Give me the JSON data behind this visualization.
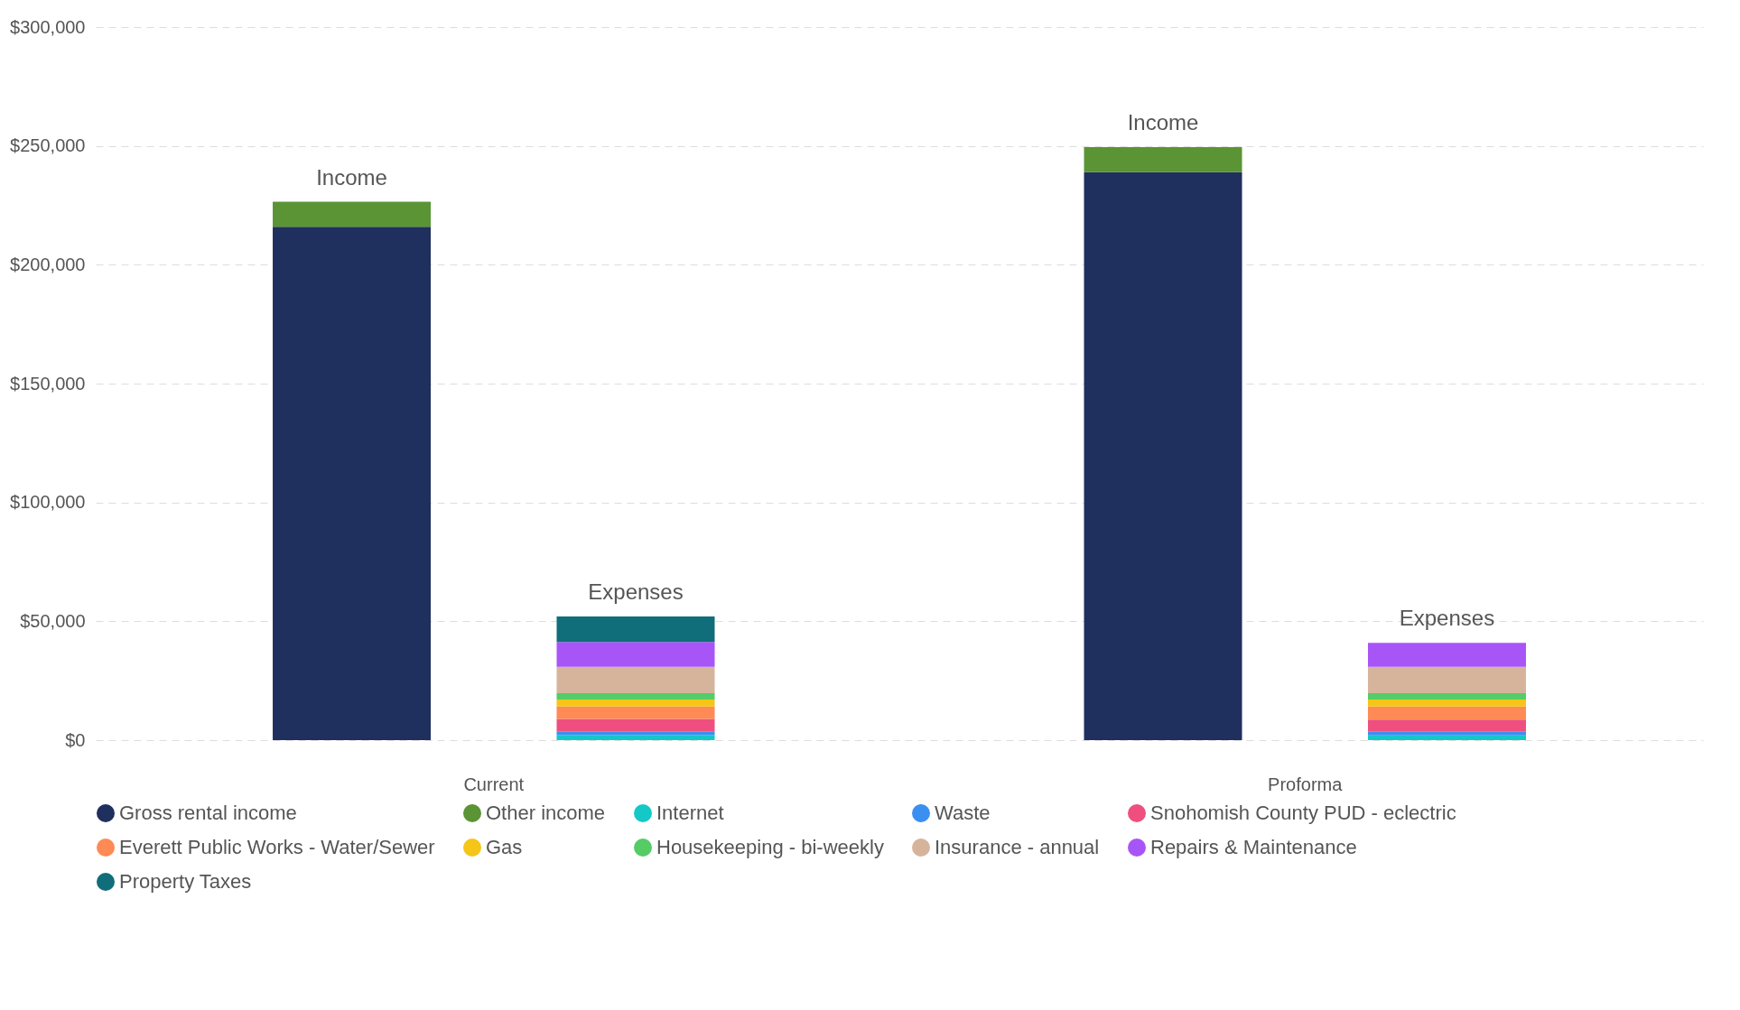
{
  "chart_data": {
    "type": "bar",
    "stacked": true,
    "categories": [
      null,
      null,
      null,
      null
    ],
    "ylim": [
      0,
      300000
    ],
    "yticks": [
      {
        "value": 0,
        "label": "$0"
      },
      {
        "value": 50000,
        "label": "$50,000"
      },
      {
        "value": 100000,
        "label": "$100,000"
      },
      {
        "value": 150000,
        "label": "$150,000"
      },
      {
        "value": 200000,
        "label": "$200,000"
      },
      {
        "value": 250000,
        "label": "$250,000"
      },
      {
        "value": 300000,
        "label": "$300,000"
      }
    ],
    "grid": "y",
    "legend": "bottom",
    "marker": "circle",
    "annotations": [
      {
        "text": "Income",
        "y": 226500
      },
      {
        "text": "Expenses",
        "y": 52000
      },
      {
        "text": "Income",
        "y": 249500
      },
      {
        "text": "Expenses",
        "y": 40900
      },
      "Current",
      "Proforma"
    ],
    "series": [
      {
        "name": "Gross rental income",
        "color": "#1f2f5e",
        "values": [
          216000,
          null,
          239000,
          null
        ]
      },
      {
        "name": "Other income",
        "color": "#5a9434",
        "values": [
          10500,
          null,
          10500,
          null
        ]
      },
      {
        "name": "Internet",
        "color": "#14c8c8",
        "values": [
          null,
          2200,
          null,
          2000
        ]
      },
      {
        "name": "Waste",
        "color": "#3b8ff0",
        "values": [
          null,
          1500,
          null,
          1700
        ]
      },
      {
        "name": "Snohomish County PUD - eclectric",
        "color": "#ee4f7e",
        "values": [
          null,
          5200,
          null,
          4900
        ]
      },
      {
        "name": "Everett Public Works - Water/Sewer",
        "color": "#ff8a55",
        "values": [
          null,
          5200,
          null,
          5500
        ]
      },
      {
        "name": "Gas",
        "color": "#f5c518",
        "values": [
          null,
          3000,
          null,
          3000
        ]
      },
      {
        "name": "Housekeeping - bi-weekly",
        "color": "#55cc66",
        "values": [
          null,
          2600,
          null,
          2600
        ]
      },
      {
        "name": "Insurance - annual",
        "color": "#d6b49c",
        "values": [
          null,
          11200,
          null,
          11200
        ]
      },
      {
        "name": "Repairs & Maintenance",
        "color": "#a855f7",
        "values": [
          null,
          10400,
          null,
          10000
        ]
      },
      {
        "name": "Property Taxes",
        "color": "#0f6e7a",
        "values": [
          null,
          10700,
          null,
          null
        ]
      }
    ]
  }
}
